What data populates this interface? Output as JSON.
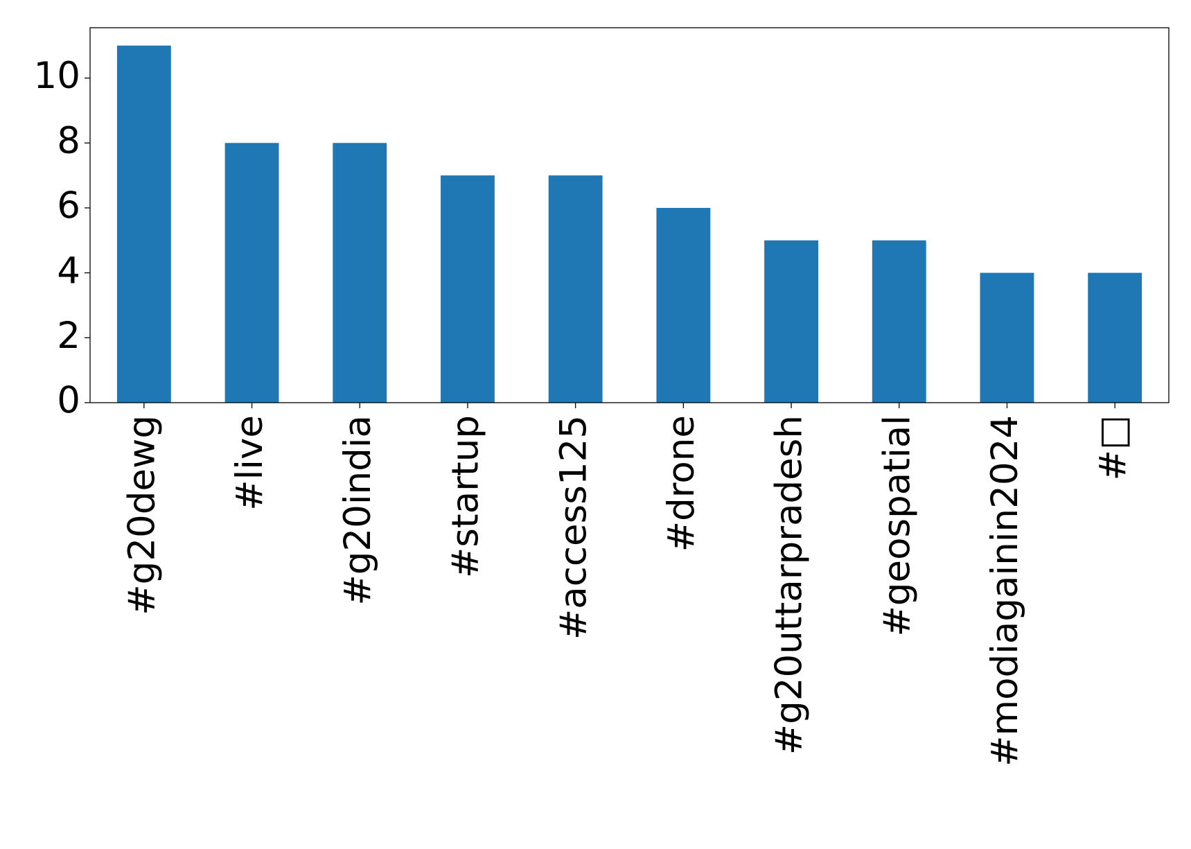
{
  "chart_data": {
    "type": "bar",
    "categories": [
      "#g20dewg",
      "#live",
      "#g20india",
      "#startup",
      "#access125",
      "#drone",
      "#g20uttarpradesh",
      "#geospatial",
      "#modiagainin2024",
      "#□"
    ],
    "values": [
      11,
      8,
      8,
      7,
      7,
      6,
      5,
      5,
      4,
      4
    ],
    "color": "#1f77b4",
    "ylim": [
      0,
      11.55
    ],
    "yticks": [
      0,
      2,
      4,
      6,
      8,
      10
    ],
    "grid": false
  }
}
